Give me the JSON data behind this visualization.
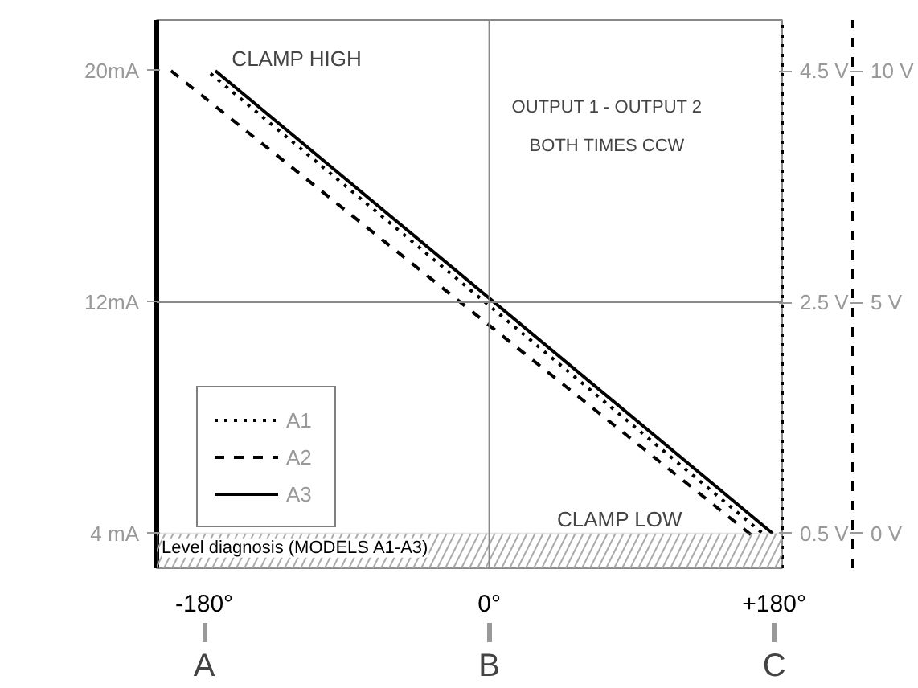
{
  "chart_data": {
    "type": "line",
    "series": [
      {
        "name": "A1",
        "color": "#000000",
        "line_style": "dotted",
        "x": [
          -176,
          175
        ],
        "values": [
          19.9,
          3.9
        ]
      },
      {
        "name": "A2",
        "color": "#000000",
        "line_style": "dashed",
        "x": [
          -201,
          169
        ],
        "values": [
          20,
          3.8
        ]
      },
      {
        "name": "A3",
        "color": "#000000",
        "line_style": "solid",
        "x": [
          -173,
          179
        ],
        "values": [
          20,
          4
        ]
      }
    ],
    "xlim": [
      -210,
      185
    ],
    "ylim": [
      2.8,
      21.75
    ],
    "xticks": [
      {
        "value": -180,
        "label": "-180°"
      },
      {
        "value": 0,
        "label": "0°"
      },
      {
        "value": 180,
        "label": "+180°"
      }
    ],
    "yticks": [
      {
        "value": 4,
        "label": "4 mA"
      },
      {
        "value": 12,
        "label": "12mA"
      },
      {
        "value": 20,
        "label": "20mA"
      }
    ],
    "y2lim": [
      0.2,
      4.94
    ],
    "y2ticks": [
      {
        "value": 0.5,
        "label": "0.5 V"
      },
      {
        "value": 2.5,
        "label": "2.5 V"
      },
      {
        "value": 4.5,
        "label": "4.5 V"
      }
    ],
    "y3lim": [
      -0.75,
      11.1
    ],
    "y3ticks": [
      {
        "value": 0,
        "label": "0 V"
      },
      {
        "value": 5,
        "label": "5 V"
      },
      {
        "value": 10,
        "label": "10 V"
      }
    ],
    "ref_lines": [
      {
        "axis": "x",
        "value": 0,
        "color": "#888888"
      },
      {
        "axis": "y",
        "value": 12,
        "color": "#888888"
      }
    ],
    "bands": [
      {
        "axis": "y",
        "from": 2.8,
        "to": 4,
        "label": "Level diagnosis (MODELS A1-A3)",
        "color": "#aaaaaa"
      }
    ],
    "annotations": [
      "CLAMP HIGH",
      "CLAMP LOW",
      "OUTPUT 1 - OUTPUT 2",
      "BOTH TIMES CCW",
      "A",
      "B",
      "C"
    ],
    "grid": false,
    "legend": "bottom left",
    "marker": "none"
  }
}
